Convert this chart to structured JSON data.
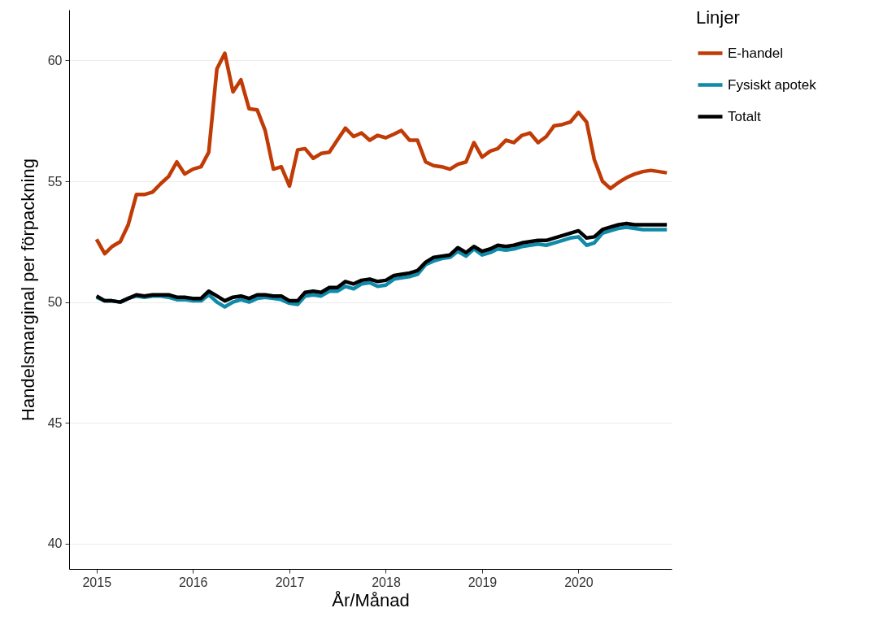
{
  "chart_data": {
    "type": "line",
    "xlabel": "År/Månad",
    "ylabel": "Handelsmarginal per förpackning",
    "legend_title": "Linjer",
    "x": [
      "2015-01",
      "2015-02",
      "2015-03",
      "2015-04",
      "2015-05",
      "2015-06",
      "2015-07",
      "2015-08",
      "2015-09",
      "2015-10",
      "2015-11",
      "2015-12",
      "2016-01",
      "2016-02",
      "2016-03",
      "2016-04",
      "2016-05",
      "2016-06",
      "2016-07",
      "2016-08",
      "2016-09",
      "2016-10",
      "2016-11",
      "2016-12",
      "2017-01",
      "2017-02",
      "2017-03",
      "2017-04",
      "2017-05",
      "2017-06",
      "2017-07",
      "2017-08",
      "2017-09",
      "2017-10",
      "2017-11",
      "2017-12",
      "2018-01",
      "2018-02",
      "2018-03",
      "2018-04",
      "2018-05",
      "2018-06",
      "2018-07",
      "2018-08",
      "2018-09",
      "2018-10",
      "2018-11",
      "2018-12",
      "2019-01",
      "2019-02",
      "2019-03",
      "2019-04",
      "2019-05",
      "2019-06",
      "2019-07",
      "2019-08",
      "2019-09",
      "2019-10",
      "2019-11",
      "2019-12",
      "2020-01",
      "2020-02",
      "2020-03",
      "2020-04",
      "2020-05",
      "2020-06",
      "2020-07",
      "2020-08",
      "2020-09",
      "2020-10",
      "2020-11",
      "2020-12"
    ],
    "series": [
      {
        "name": "E-handel",
        "color": "#c03b05",
        "values": [
          52.6,
          52.0,
          52.3,
          52.5,
          53.2,
          54.45,
          54.45,
          54.55,
          54.9,
          55.2,
          55.8,
          55.3,
          55.5,
          55.6,
          56.2,
          59.65,
          60.3,
          58.7,
          59.2,
          58.0,
          57.95,
          57.1,
          55.5,
          55.6,
          54.8,
          56.3,
          56.35,
          55.95,
          56.15,
          56.2,
          56.7,
          57.2,
          56.85,
          57.0,
          56.7,
          56.9,
          56.8,
          56.95,
          57.1,
          56.7,
          56.7,
          55.8,
          55.65,
          55.6,
          55.5,
          55.7,
          55.8,
          56.6,
          56.0,
          56.25,
          56.35,
          56.7,
          56.6,
          56.9,
          57.0,
          56.6,
          56.85,
          57.3,
          57.35,
          57.45,
          57.85,
          57.45,
          55.9,
          55.0,
          54.7,
          54.95,
          55.15,
          55.3,
          55.4,
          55.45,
          55.4,
          55.35
        ]
      },
      {
        "name": "Fysiskt apotek",
        "color": "#0f8aa8",
        "values": [
          50.2,
          50.05,
          50.05,
          50.0,
          50.15,
          50.25,
          50.2,
          50.25,
          50.25,
          50.2,
          50.1,
          50.1,
          50.05,
          50.05,
          50.3,
          50.0,
          49.8,
          50.0,
          50.1,
          50.0,
          50.15,
          50.2,
          50.15,
          50.1,
          49.95,
          49.9,
          50.25,
          50.3,
          50.25,
          50.45,
          50.45,
          50.65,
          50.55,
          50.75,
          50.8,
          50.65,
          50.7,
          50.95,
          51.0,
          51.05,
          51.15,
          51.55,
          51.7,
          51.8,
          51.85,
          52.1,
          51.9,
          52.2,
          51.95,
          52.05,
          52.2,
          52.15,
          52.2,
          52.3,
          52.35,
          52.4,
          52.35,
          52.45,
          52.55,
          52.65,
          52.7,
          52.35,
          52.45,
          52.85,
          52.95,
          53.05,
          53.1,
          53.05,
          53.0,
          53.0,
          53.0,
          53.0
        ]
      },
      {
        "name": "Totalt",
        "color": "#000000",
        "values": [
          50.25,
          50.05,
          50.05,
          50.0,
          50.15,
          50.3,
          50.25,
          50.3,
          50.3,
          50.3,
          50.2,
          50.2,
          50.15,
          50.15,
          50.45,
          50.25,
          50.05,
          50.2,
          50.25,
          50.15,
          50.3,
          50.3,
          50.25,
          50.25,
          50.05,
          50.05,
          50.4,
          50.45,
          50.4,
          50.6,
          50.6,
          50.85,
          50.75,
          50.9,
          50.95,
          50.85,
          50.9,
          51.1,
          51.15,
          51.2,
          51.3,
          51.65,
          51.85,
          51.9,
          51.95,
          52.25,
          52.05,
          52.3,
          52.1,
          52.2,
          52.35,
          52.3,
          52.35,
          52.45,
          52.5,
          52.55,
          52.55,
          52.65,
          52.75,
          52.85,
          52.95,
          52.65,
          52.7,
          53.0,
          53.1,
          53.2,
          53.25,
          53.2,
          53.2,
          53.2,
          53.2,
          53.2
        ]
      }
    ],
    "xlim": [
      "2014-09-19",
      "2020-12-19"
    ],
    "xticks": [
      "2015",
      "2016",
      "2017",
      "2018",
      "2019",
      "2020"
    ],
    "ylim": [
      38.95,
      62.1
    ],
    "yticks": [
      40,
      45,
      50,
      55,
      60
    ],
    "grid": "y",
    "legend": "right",
    "line_style": "solid",
    "marker": "none"
  }
}
